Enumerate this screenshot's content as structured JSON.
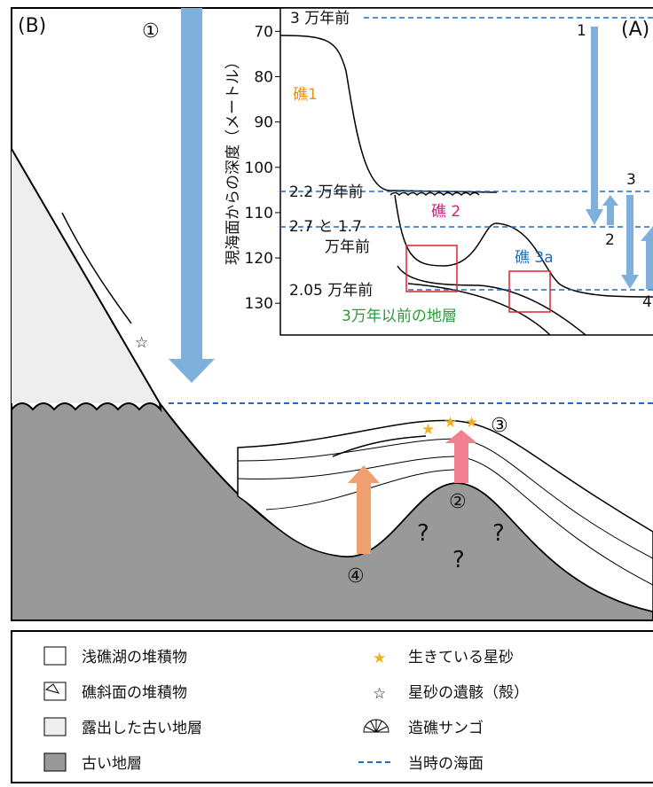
{
  "panel_b": {
    "label": "(B)",
    "arrow_labels": [
      "①",
      "②",
      "③",
      "④"
    ],
    "unknown": [
      "?",
      "?",
      "?"
    ]
  },
  "panel_a": {
    "label": "(A)",
    "axis_label": "現海面からの深度（メートル）",
    "yticks": [
      70,
      80,
      90,
      100,
      110,
      120,
      130
    ],
    "ylim": [
      67,
      137
    ],
    "times": [
      "3 万年前",
      "2.2 万年前",
      "2.7 と 1.7",
      "万年前",
      "2.05 万年前"
    ],
    "reefs": [
      "礁1",
      "礁 2",
      "礁 3a"
    ],
    "old_strata": "3万年以前の地層",
    "arrow_numbers": [
      "1",
      "2",
      "3",
      "4"
    ]
  },
  "legend": {
    "items": [
      "浅礁湖の堆積物",
      "礁斜面の堆積物",
      "露出した古い地層",
      "古い地層",
      "生きている星砂",
      "星砂の遺骸（殻）",
      "造礁サンゴ",
      "当時の海面"
    ]
  }
}
